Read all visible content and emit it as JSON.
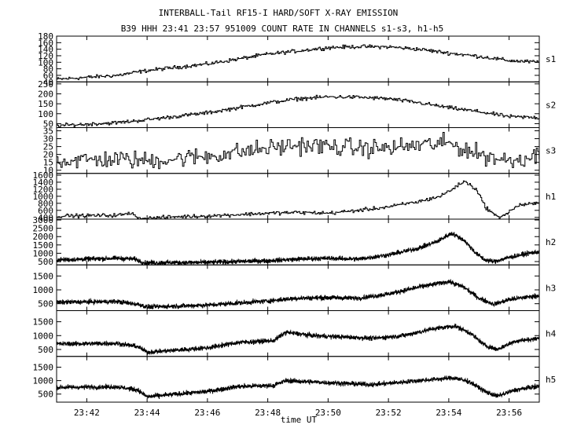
{
  "title_line1": "INTERBALL-Tail RF15-I HARD/SOFT X-RAY EMISSION",
  "title_line2": "B39 HHH 23:41 23:57 951009  COUNT RATE IN CHANNELS s1-s3, h1-h5",
  "chart_data": {
    "type": "line",
    "x_axis": {
      "label": "time UT",
      "range": [
        "23:41",
        "23:57"
      ],
      "tick_labels": [
        "23:42",
        "23:44",
        "23:46",
        "23:48",
        "23:50",
        "23:52",
        "23:54",
        "23:56"
      ]
    },
    "panels": [
      {
        "name": "s1",
        "ylim": [
          40,
          180
        ],
        "y_tick_labels": [
          "40",
          "60",
          "80",
          "100",
          "120",
          "140",
          "160",
          "180"
        ],
        "noise": "low",
        "profile": [
          [
            0,
            48
          ],
          [
            2,
            60
          ],
          [
            3,
            75
          ],
          [
            5,
            95
          ],
          [
            7,
            125
          ],
          [
            8,
            135
          ],
          [
            9,
            145
          ],
          [
            10,
            148
          ],
          [
            11,
            147
          ],
          [
            12,
            140
          ],
          [
            13,
            128
          ],
          [
            14,
            118
          ],
          [
            15,
            105
          ],
          [
            16,
            100
          ]
        ]
      },
      {
        "name": "s2",
        "ylim": [
          30,
          260
        ],
        "y_tick_labels": [
          "50",
          "100",
          "150",
          "200",
          "250"
        ],
        "noise": "low",
        "profile": [
          [
            0,
            40
          ],
          [
            2,
            55
          ],
          [
            3,
            70
          ],
          [
            5,
            105
          ],
          [
            7,
            155
          ],
          [
            8,
            175
          ],
          [
            9,
            185
          ],
          [
            10,
            183
          ],
          [
            11,
            175
          ],
          [
            12,
            155
          ],
          [
            13,
            130
          ],
          [
            14,
            110
          ],
          [
            15,
            85
          ],
          [
            16,
            80
          ]
        ]
      },
      {
        "name": "s3",
        "ylim": [
          8,
          37
        ],
        "y_tick_labels": [
          "10",
          "15",
          "20",
          "25",
          "30",
          "35"
        ],
        "noise": "high",
        "profile": [
          [
            0,
            16
          ],
          [
            2,
            17
          ],
          [
            3,
            16
          ],
          [
            5,
            19
          ],
          [
            7,
            24
          ],
          [
            8,
            26
          ],
          [
            9,
            25
          ],
          [
            10,
            24
          ],
          [
            11,
            24
          ],
          [
            12,
            26
          ],
          [
            13,
            27
          ],
          [
            14,
            20
          ],
          [
            15,
            16
          ],
          [
            16,
            20
          ]
        ]
      },
      {
        "name": "h1",
        "ylim": [
          350,
          1650
        ],
        "y_tick_labels": [
          "400",
          "600",
          "800",
          "1000",
          "1200",
          "1400",
          "1600"
        ],
        "noise": "low",
        "profile": [
          [
            0,
            440
          ],
          [
            2,
            460
          ],
          [
            2.55,
            520
          ],
          [
            2.7,
            360
          ],
          [
            4,
            420
          ],
          [
            5,
            440
          ],
          [
            6,
            480
          ],
          [
            7,
            520
          ],
          [
            8,
            540
          ],
          [
            9,
            520
          ],
          [
            10,
            600
          ],
          [
            11,
            700
          ],
          [
            12,
            850
          ],
          [
            12.7,
            1000
          ],
          [
            13.1,
            1200
          ],
          [
            13.5,
            1430
          ],
          [
            13.9,
            1200
          ],
          [
            14.2,
            700
          ],
          [
            14.6,
            400
          ],
          [
            14.9,
            500
          ],
          [
            15.3,
            750
          ],
          [
            16,
            800
          ]
        ]
      },
      {
        "name": "h2",
        "ylim": [
          300,
          3050
        ],
        "y_tick_labels": [
          "500",
          "1000",
          "1500",
          "2000",
          "2500",
          "3000"
        ],
        "noise": "band",
        "profile": [
          [
            0,
            600
          ],
          [
            2,
            700
          ],
          [
            2.6,
            650
          ],
          [
            2.9,
            430
          ],
          [
            5,
            450
          ],
          [
            7,
            550
          ],
          [
            8,
            650
          ],
          [
            9,
            700
          ],
          [
            10,
            650
          ],
          [
            11,
            900
          ],
          [
            12,
            1300
          ],
          [
            12.6,
            1700
          ],
          [
            13.1,
            2200
          ],
          [
            13.5,
            1800
          ],
          [
            13.9,
            1000
          ],
          [
            14.2,
            600
          ],
          [
            14.5,
            500
          ],
          [
            15,
            750
          ],
          [
            15.5,
            950
          ],
          [
            16,
            1100
          ]
        ]
      },
      {
        "name": "h3",
        "ylim": [
          250,
          1900
        ],
        "y_tick_labels": [
          "500",
          "1000",
          "1500"
        ],
        "noise": "band",
        "profile": [
          [
            0,
            550
          ],
          [
            2,
            580
          ],
          [
            2.7,
            480
          ],
          [
            3,
            380
          ],
          [
            5,
            450
          ],
          [
            7,
            600
          ],
          [
            8,
            700
          ],
          [
            9,
            720
          ],
          [
            10,
            700
          ],
          [
            11,
            850
          ],
          [
            12,
            1100
          ],
          [
            13,
            1300
          ],
          [
            13.5,
            1100
          ],
          [
            14,
            700
          ],
          [
            14.5,
            480
          ],
          [
            15,
            650
          ],
          [
            16,
            800
          ]
        ]
      },
      {
        "name": "h4",
        "ylim": [
          250,
          1900
        ],
        "y_tick_labels": [
          "500",
          "1000",
          "1500"
        ],
        "noise": "band",
        "profile": [
          [
            0,
            700
          ],
          [
            2,
            720
          ],
          [
            2.7,
            600
          ],
          [
            3,
            400
          ],
          [
            5,
            560
          ],
          [
            6,
            750
          ],
          [
            7.2,
            820
          ],
          [
            7.6,
            1120
          ],
          [
            8.5,
            1000
          ],
          [
            9.5,
            950
          ],
          [
            10.5,
            900
          ],
          [
            11.5,
            1000
          ],
          [
            12.5,
            1250
          ],
          [
            13.2,
            1350
          ],
          [
            13.7,
            1100
          ],
          [
            14.2,
            650
          ],
          [
            14.6,
            500
          ],
          [
            15.2,
            800
          ],
          [
            16,
            900
          ]
        ]
      },
      {
        "name": "h5",
        "ylim": [
          200,
          1900
        ],
        "y_tick_labels": [
          "500",
          "1000",
          "1500"
        ],
        "noise": "band",
        "profile": [
          [
            0,
            750
          ],
          [
            2,
            770
          ],
          [
            2.7,
            650
          ],
          [
            3,
            400
          ],
          [
            5,
            600
          ],
          [
            6,
            780
          ],
          [
            7.2,
            820
          ],
          [
            7.6,
            1000
          ],
          [
            8.5,
            950
          ],
          [
            9.5,
            900
          ],
          [
            10.5,
            850
          ],
          [
            11.5,
            950
          ],
          [
            12.5,
            1050
          ],
          [
            13.2,
            1100
          ],
          [
            13.7,
            950
          ],
          [
            14.2,
            600
          ],
          [
            14.6,
            420
          ],
          [
            15.2,
            650
          ],
          [
            16,
            800
          ]
        ]
      }
    ]
  }
}
